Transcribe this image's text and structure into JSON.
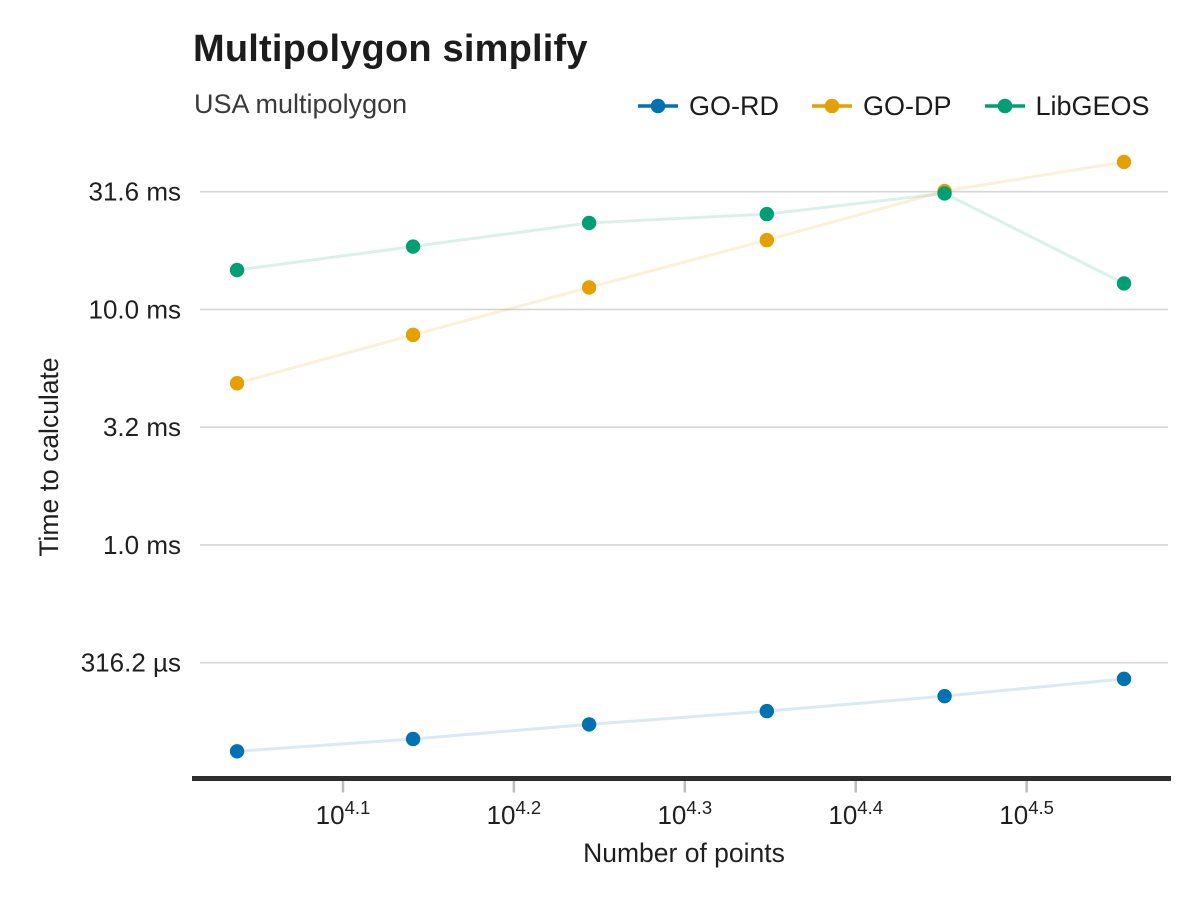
{
  "chart_data": {
    "type": "line",
    "title": "Multipolygon simplify",
    "subtitle": "USA multipolygon",
    "xlabel": "Number of points",
    "ylabel": "Time to calculate",
    "x_scale": "log10",
    "y_scale": "log10",
    "grid": "horizontal-only",
    "legend_position": "top-right",
    "x_ticks": [
      {
        "base": "10",
        "exp": "4.1",
        "log10": 4.1
      },
      {
        "base": "10",
        "exp": "4.2",
        "log10": 4.2
      },
      {
        "base": "10",
        "exp": "4.3",
        "log10": 4.3
      },
      {
        "base": "10",
        "exp": "4.4",
        "log10": 4.4
      },
      {
        "base": "10",
        "exp": "4.5",
        "log10": 4.5
      }
    ],
    "y_ticks": [
      {
        "label": "31.6 ms",
        "ms": 31.62
      },
      {
        "label": "10.0 ms",
        "ms": 10.0
      },
      {
        "label": "3.2 ms",
        "ms": 3.162
      },
      {
        "label": "1.0 ms",
        "ms": 1.0
      },
      {
        "label": "316.2 µs",
        "ms": 0.3162
      }
    ],
    "x_log10": [
      4.038,
      4.141,
      4.244,
      4.348,
      4.452,
      4.557
    ],
    "series": [
      {
        "name": "GO-RD",
        "color": "#0072B2",
        "values_ms": [
          0.133,
          0.15,
          0.173,
          0.197,
          0.228,
          0.27
        ]
      },
      {
        "name": "GO-DP",
        "color": "#E69F00",
        "values_ms": [
          4.86,
          7.8,
          12.4,
          19.7,
          31.8,
          42.3
        ]
      },
      {
        "name": "LibGEOS",
        "color": "#009E73",
        "values_ms": [
          14.7,
          18.5,
          23.3,
          25.4,
          31.1,
          12.9
        ]
      }
    ],
    "line_opacity": 0.15,
    "marker_radius": 7.2,
    "grid_color": "#d6d6d6",
    "axis_color": "#2e2e2e",
    "tick_color": "#bdbdbd"
  }
}
